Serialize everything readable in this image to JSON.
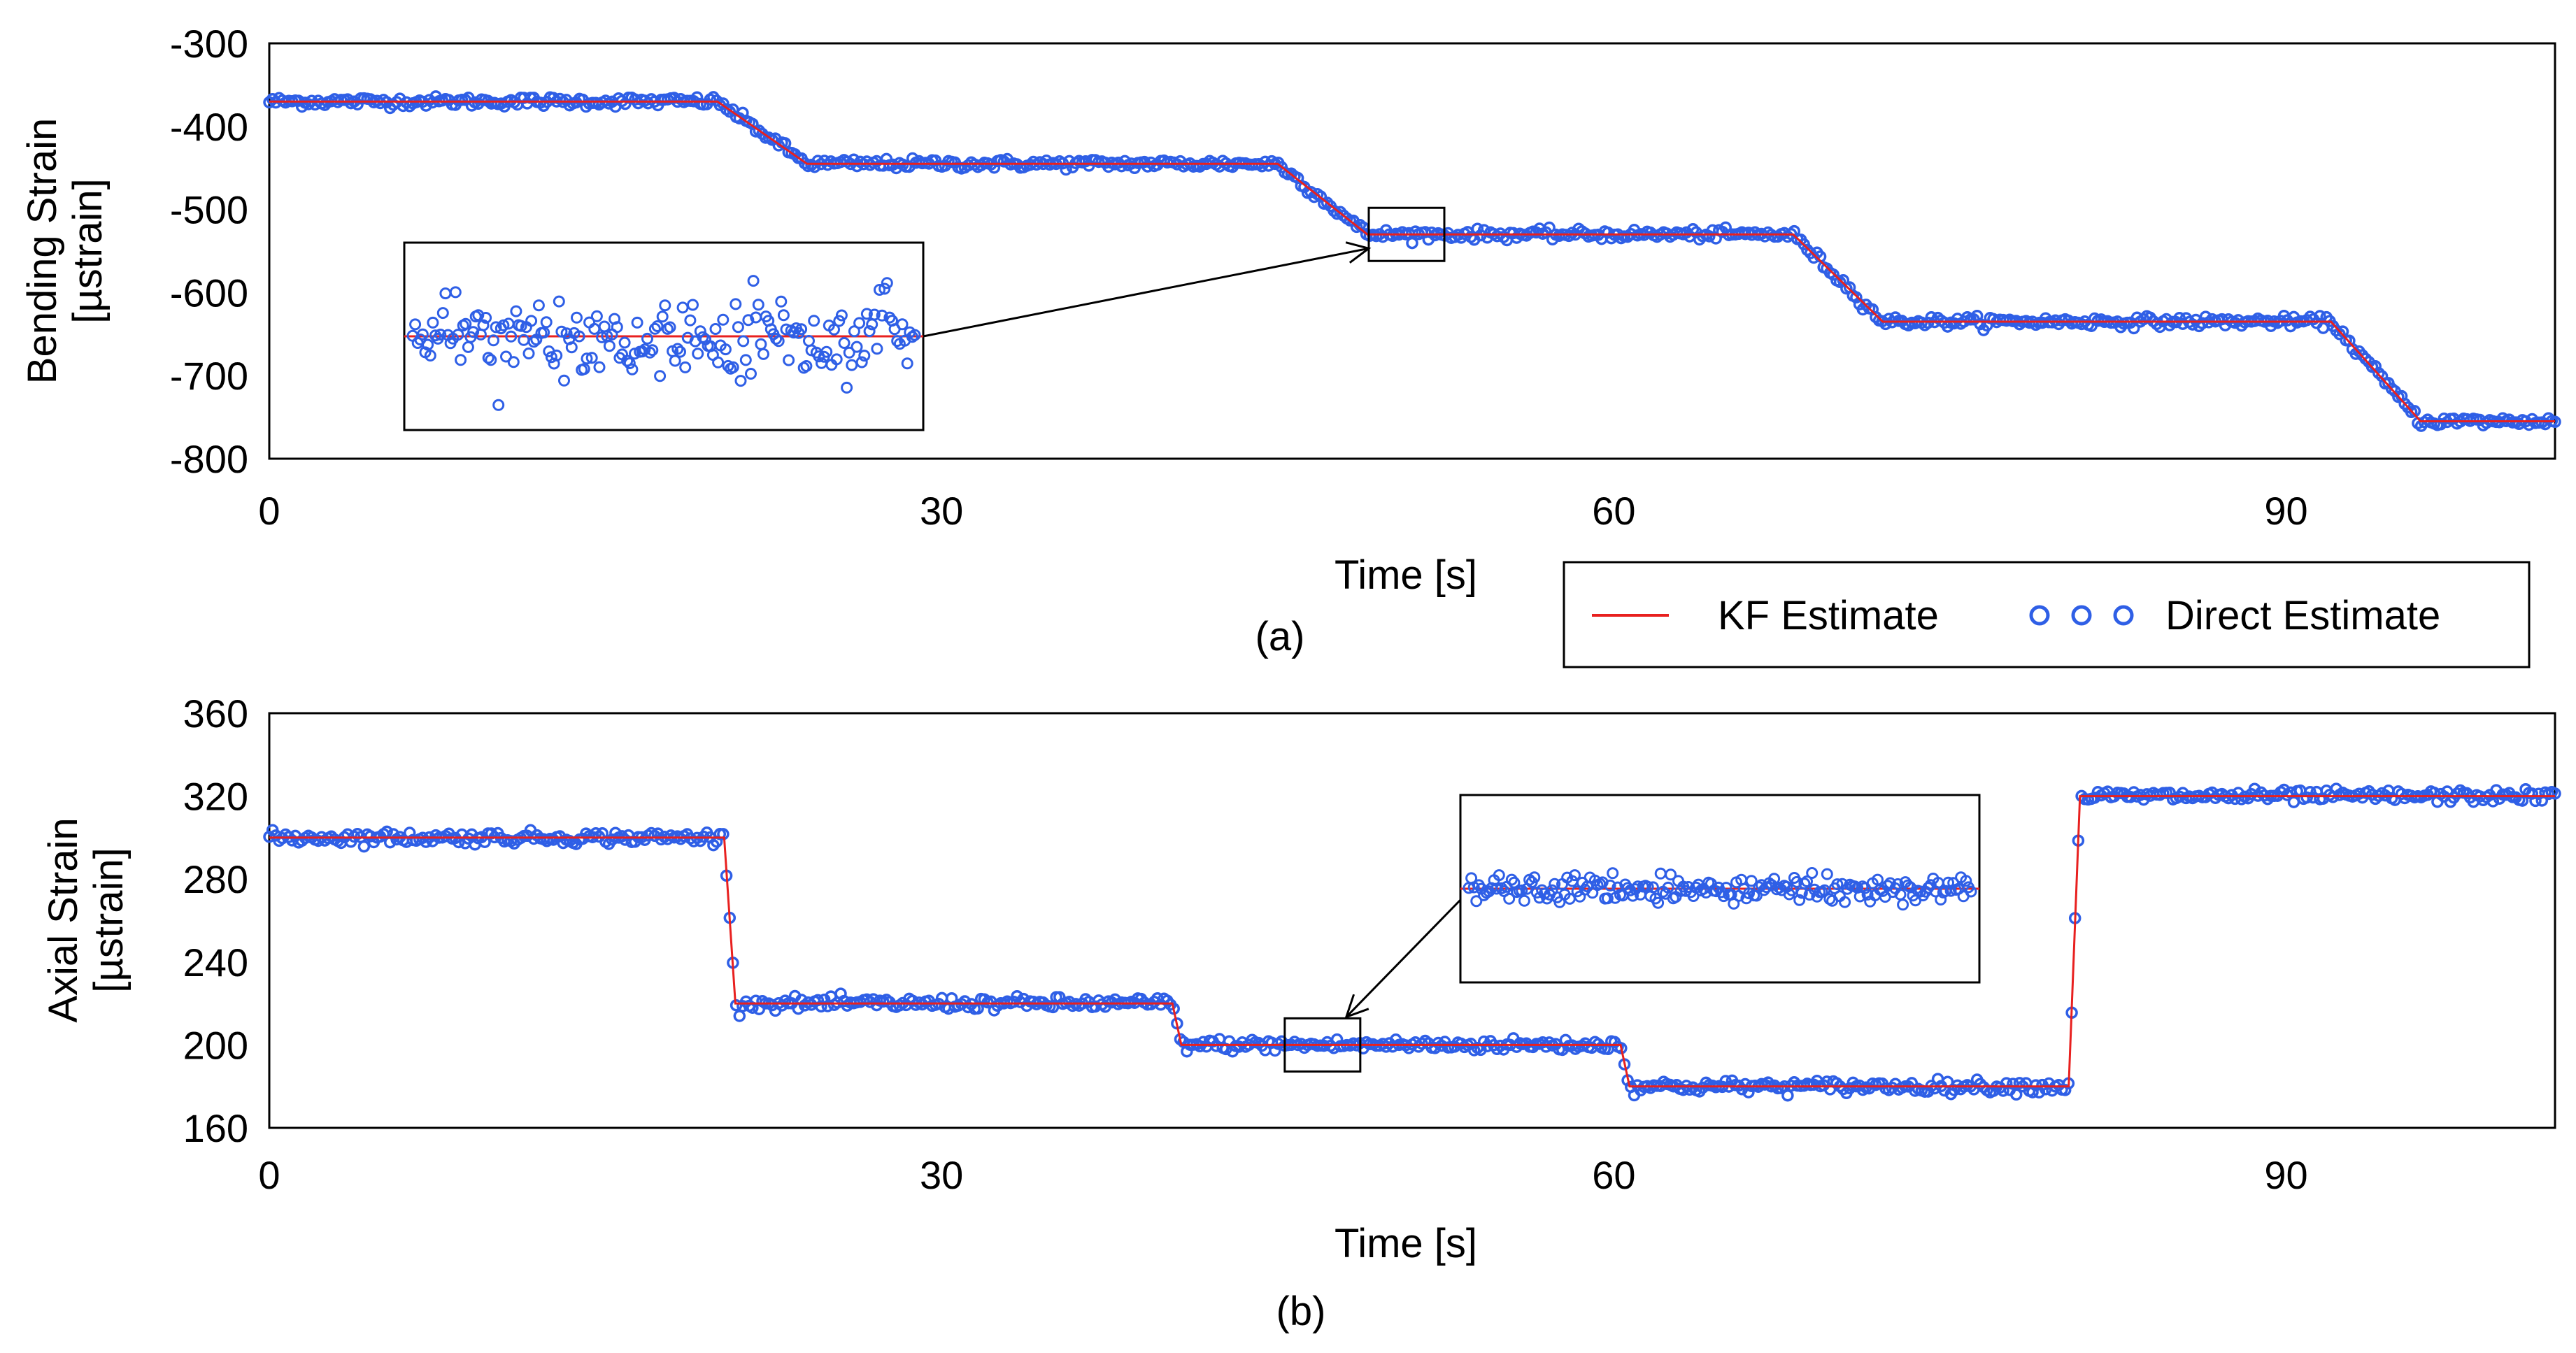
{
  "colors": {
    "kf": "#e8201f",
    "direct": "#2f5fe6",
    "frame": "#000000",
    "background": "#ffffff"
  },
  "legend": {
    "kf_label": "KF Estimate",
    "direct_label": "Direct Estimate"
  },
  "chart_data": [
    {
      "type": "line",
      "panel": "(a)",
      "xlabel": "Time [s]",
      "ylabel_line1": "Bending Strain",
      "ylabel_line2": "[µstrain]",
      "xlim": [
        0,
        102
      ],
      "ylim": [
        -800,
        -300
      ],
      "xticks": [
        0,
        30,
        60,
        90
      ],
      "yticks": [
        -300,
        -400,
        -500,
        -600,
        -700,
        -800
      ],
      "series": [
        {
          "name": "KF Estimate",
          "x": [
            0,
            20,
            24,
            45,
            49,
            68,
            72,
            92,
            96,
            102
          ],
          "y": [
            -370,
            -370,
            -445,
            -445,
            -530,
            -530,
            -635,
            -635,
            -755,
            -755
          ]
        },
        {
          "name": "Direct Estimate",
          "x": [
            0,
            20,
            24,
            45,
            49,
            68,
            72,
            92,
            96,
            102
          ],
          "y": [
            -370,
            -370,
            -445,
            -445,
            -530,
            -530,
            -635,
            -635,
            -755,
            -755
          ],
          "noise_std": 3
        }
      ],
      "inset": {
        "x_range": [
          49,
          52.5
        ],
        "y_center": -530,
        "zoom_noise": 30
      }
    },
    {
      "type": "line",
      "panel": "(b)",
      "xlabel": "Time [s]",
      "ylabel_line1": "Axial Strain",
      "ylabel_line2": "[µstrain]",
      "xlim": [
        0,
        102
      ],
      "ylim": [
        160,
        360
      ],
      "xticks": [
        0,
        30,
        60,
        90
      ],
      "yticks": [
        360,
        320,
        280,
        240,
        200,
        160
      ],
      "series": [
        {
          "name": "KF Estimate",
          "x": [
            0,
            20.3,
            20.8,
            40.3,
            40.7,
            60.3,
            60.7,
            80.3,
            80.8,
            102
          ],
          "y": [
            300,
            300,
            220,
            220,
            200,
            200,
            180,
            180,
            320,
            320
          ]
        },
        {
          "name": "Direct Estimate",
          "x": [
            0,
            20.3,
            20.8,
            40.3,
            40.7,
            60.3,
            60.7,
            80.3,
            80.8,
            102
          ],
          "y": [
            300,
            300,
            220,
            220,
            200,
            200,
            180,
            180,
            320,
            320
          ],
          "noise_std": 1.5
        }
      ],
      "inset": {
        "x_range": [
          45.5,
          48.5
        ],
        "y_center": 200,
        "zoom_noise": 10
      }
    }
  ]
}
